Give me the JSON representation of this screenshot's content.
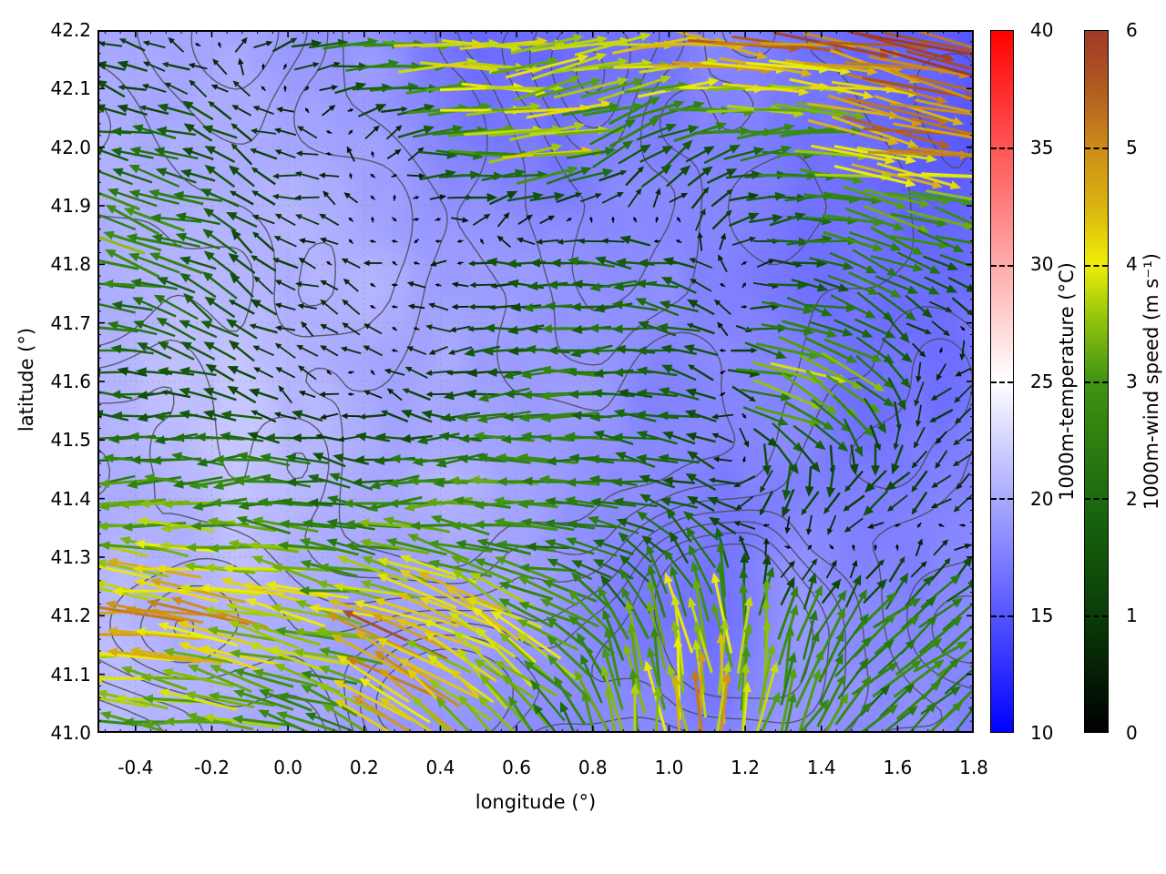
{
  "figure": {
    "xlabel": "longitude (°)",
    "ylabel": "latitude (°)",
    "x_ticks": [
      -0.4,
      -0.2,
      0.0,
      0.2,
      0.4,
      0.6,
      0.8,
      1.0,
      1.2,
      1.4,
      1.6,
      1.8
    ],
    "y_ticks": [
      41.0,
      41.1,
      41.2,
      41.3,
      41.4,
      41.5,
      41.6,
      41.7,
      41.8,
      41.9,
      42.0,
      42.1,
      42.2
    ],
    "xlim": [
      -0.5,
      1.8
    ],
    "ylim": [
      41.0,
      42.2
    ],
    "grid_style": "dotted",
    "background": "#ffffff",
    "contour_line_color": "#4a4a52"
  },
  "colorbars": [
    {
      "id": "temperature",
      "label": "1000m-temperature (°C)",
      "min": 10,
      "max": 40,
      "ticks": [
        10,
        15,
        20,
        25,
        30,
        35,
        40
      ],
      "stops": [
        {
          "v": 10,
          "c": "#0000ff"
        },
        {
          "v": 25,
          "c": "#ffffff"
        },
        {
          "v": 40,
          "c": "#ff0000"
        }
      ]
    },
    {
      "id": "windspeed",
      "label": "1000m-wind speed (m s⁻¹)",
      "min": 0,
      "max": 6,
      "ticks": [
        0,
        1,
        2,
        3,
        4,
        5,
        6
      ],
      "stops": [
        {
          "v": 0,
          "c": "#000000"
        },
        {
          "v": 1,
          "c": "#0a3c08"
        },
        {
          "v": 2,
          "c": "#1b6b0e"
        },
        {
          "v": 3,
          "c": "#3f9413"
        },
        {
          "v": 3.5,
          "c": "#8cc00c"
        },
        {
          "v": 4,
          "c": "#eeee06"
        },
        {
          "v": 4.5,
          "c": "#d9b410"
        },
        {
          "v": 5,
          "c": "#cc8c18"
        },
        {
          "v": 5.5,
          "c": "#b05c20"
        },
        {
          "v": 6,
          "c": "#a03828"
        }
      ]
    }
  ],
  "chart_data": {
    "type": "heatmap",
    "layers": [
      "temperature-heatmap",
      "terrain-contours",
      "wind-quiver"
    ],
    "x_lon": [
      -0.5,
      -0.3,
      -0.1,
      0.1,
      0.3,
      0.5,
      0.7,
      0.9,
      1.1,
      1.3,
      1.5,
      1.7
    ],
    "y_lat": [
      42.2,
      42.0,
      41.8,
      41.6,
      41.4,
      41.2,
      41.0
    ],
    "temperature_c": [
      [
        19.5,
        20.0,
        19.5,
        19.0,
        17.5,
        16.0,
        16.0,
        17.0,
        17.5,
        16.5,
        15.5,
        15.0
      ],
      [
        20.0,
        20.5,
        20.0,
        19.5,
        18.5,
        17.0,
        16.5,
        18.0,
        17.5,
        17.0,
        16.0,
        15.5
      ],
      [
        20.5,
        21.0,
        20.5,
        20.0,
        19.5,
        19.0,
        18.5,
        18.5,
        18.0,
        17.0,
        16.5,
        16.5
      ],
      [
        21.0,
        21.5,
        21.0,
        20.5,
        20.0,
        19.5,
        19.0,
        18.5,
        18.0,
        17.5,
        17.0,
        17.0
      ],
      [
        20.5,
        21.0,
        21.0,
        20.5,
        20.0,
        19.5,
        19.0,
        18.5,
        18.0,
        17.5,
        17.5,
        17.5
      ],
      [
        20.5,
        20.5,
        20.0,
        20.0,
        19.5,
        19.0,
        18.5,
        17.0,
        16.5,
        18.0,
        18.5,
        18.0
      ],
      [
        21.0,
        20.5,
        20.0,
        19.5,
        19.0,
        19.0,
        18.5,
        18.0,
        17.5,
        18.5,
        18.0,
        17.5
      ]
    ],
    "wind_u_ms": [
      [
        -0.6,
        -0.5,
        0.5,
        1.5,
        3.5,
        4.5,
        3.0,
        4.0,
        5.0,
        5.5,
        5.8,
        5.5
      ],
      [
        -1.8,
        -2.2,
        -1.2,
        -0.6,
        0.5,
        3.0,
        3.8,
        2.0,
        1.5,
        2.8,
        3.8,
        4.5
      ],
      [
        -3.0,
        -2.2,
        -1.0,
        -0.4,
        -0.3,
        -0.8,
        -1.8,
        -2.0,
        -0.8,
        1.5,
        2.0,
        1.8
      ],
      [
        -2.0,
        -1.5,
        -0.8,
        -0.4,
        -0.5,
        -1.5,
        -2.2,
        -2.0,
        -1.0,
        3.6,
        2.5,
        -0.8
      ],
      [
        -2.5,
        -2.8,
        -2.5,
        -2.2,
        -2.5,
        -2.8,
        -2.5,
        -2.0,
        -1.5,
        -0.5,
        -1.2,
        -0.8
      ],
      [
        -4.5,
        -5.0,
        -4.2,
        -3.8,
        -4.5,
        -3.5,
        -2.5,
        -1.0,
        -0.5,
        1.0,
        1.5,
        2.0
      ],
      [
        -3.0,
        -3.5,
        -3.0,
        -2.2,
        -3.5,
        -2.0,
        -1.2,
        -0.3,
        0.5,
        1.0,
        1.5,
        1.8
      ]
    ],
    "wind_v_ms": [
      [
        0.3,
        0.4,
        0.4,
        0.3,
        0.2,
        0.0,
        0.3,
        0.2,
        -0.3,
        -0.8,
        -1.2,
        -1.5
      ],
      [
        0.6,
        0.8,
        0.5,
        0.2,
        0.2,
        0.4,
        0.6,
        0.8,
        0.6,
        0.3,
        -0.3,
        -0.8
      ],
      [
        0.5,
        0.8,
        0.6,
        0.3,
        0.1,
        0.0,
        0.0,
        0.3,
        0.5,
        0.0,
        -0.8,
        -0.8
      ],
      [
        0.2,
        0.3,
        0.3,
        0.2,
        0.1,
        0.0,
        0.0,
        0.2,
        0.5,
        -1.4,
        -1.5,
        -0.4
      ],
      [
        0.0,
        0.0,
        0.0,
        0.0,
        0.0,
        0.0,
        0.2,
        0.3,
        0.5,
        -1.5,
        -1.0,
        -0.5
      ],
      [
        0.3,
        0.5,
        0.5,
        0.8,
        1.8,
        2.2,
        1.2,
        2.5,
        4.2,
        2.5,
        2.0,
        1.5
      ],
      [
        0.3,
        0.5,
        0.5,
        1.2,
        3.2,
        3.0,
        2.0,
        3.5,
        4.5,
        2.8,
        2.2,
        1.5
      ]
    ]
  }
}
